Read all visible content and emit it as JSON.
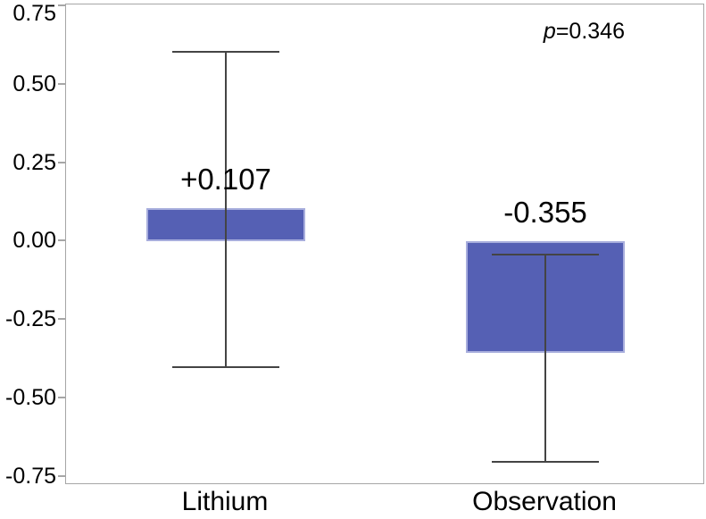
{
  "figure": {
    "annotation": {
      "italic_part": "p",
      "value_part": "=0.346"
    }
  },
  "chart_data": {
    "type": "bar",
    "title": "",
    "xlabel": "",
    "ylabel": "",
    "categories": [
      "Lithium",
      "Observation"
    ],
    "values": [
      0.107,
      -0.355
    ],
    "value_labels": [
      "+0.107",
      "-0.355"
    ],
    "error_bars": [
      {
        "low": -0.4,
        "high": 0.605
      },
      {
        "low": -0.7,
        "high": -0.04
      }
    ],
    "annotation": "p=0.346",
    "ylim": [
      -0.775,
      0.755
    ],
    "yticks": [
      0.75,
      0.5,
      0.25,
      0,
      -0.25,
      -0.5,
      -0.75
    ],
    "ytick_labels": [
      "0.75",
      "0.50",
      "0.25",
      "0.00",
      "-0.25",
      "-0.50",
      "-0.75"
    ],
    "grid": false,
    "legend": null,
    "colors": {
      "bar_fill": "#5560b4",
      "bar_border": "#a8aedd",
      "axis": "#a6a6a6",
      "whisker": "#444444",
      "text": "#000000",
      "background": "#ffffff"
    }
  }
}
